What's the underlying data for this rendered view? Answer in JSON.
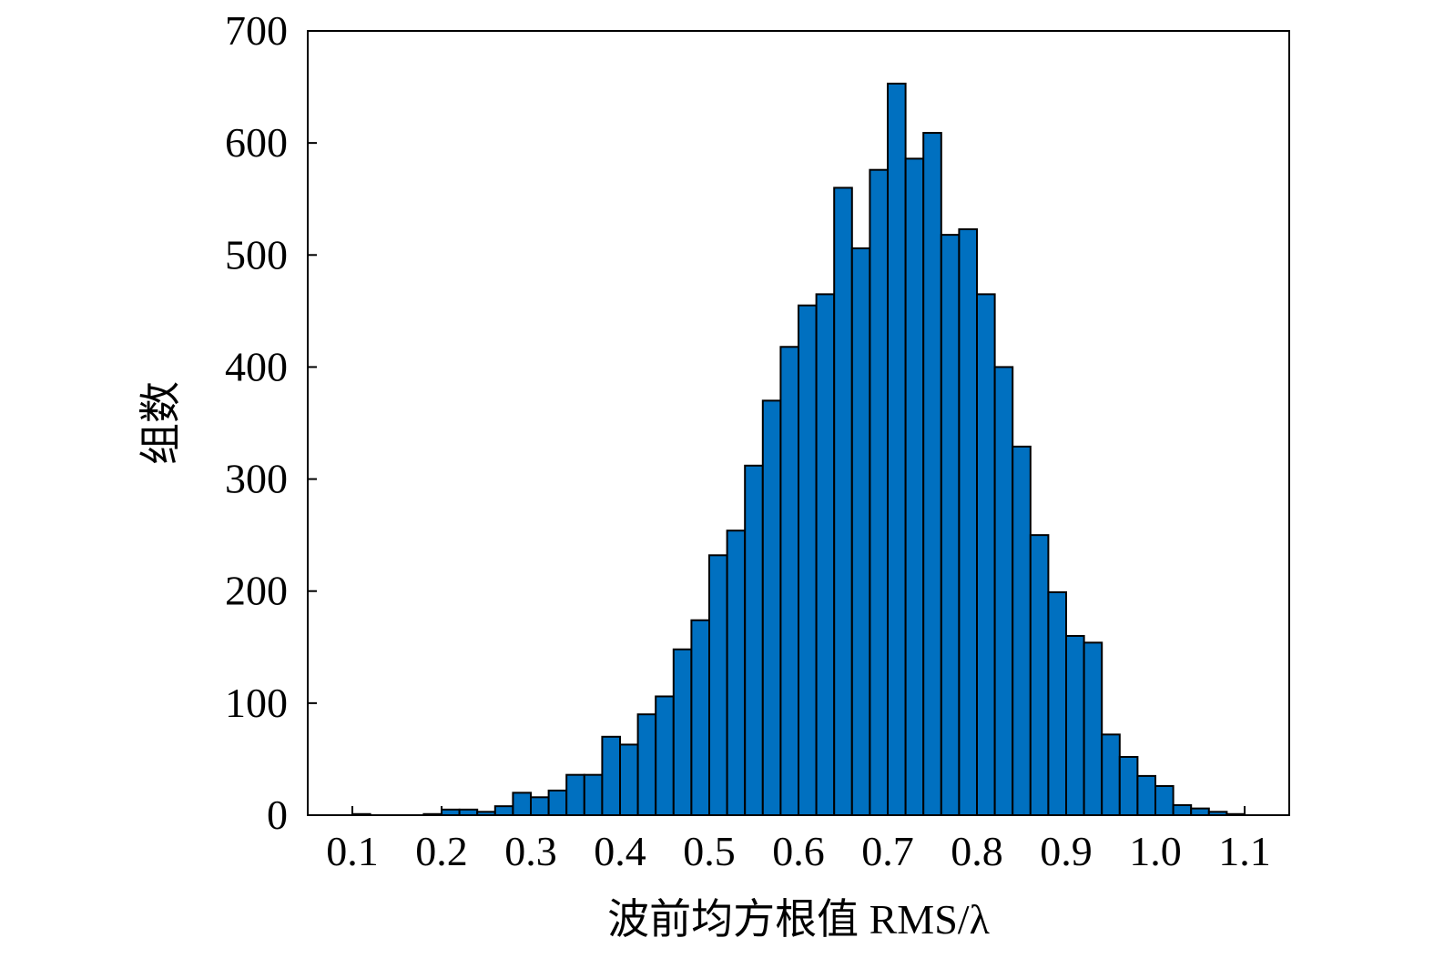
{
  "chart_data": {
    "type": "bar",
    "xlabel": "波前均方根值 RMS/λ",
    "ylabel": "组数",
    "xlim": [
      0.05,
      1.15
    ],
    "ylim": [
      0,
      700
    ],
    "xtick_labels": [
      "0.1",
      "0.2",
      "0.3",
      "0.4",
      "0.5",
      "0.6",
      "0.7",
      "0.8",
      "0.9",
      "1.0",
      "1.1"
    ],
    "ytick_labels": [
      "0",
      "100",
      "200",
      "300",
      "400",
      "500",
      "600",
      "700"
    ],
    "bin_edges": [
      0.1,
      0.12,
      0.14,
      0.16,
      0.18,
      0.2,
      0.22,
      0.24,
      0.26,
      0.28,
      0.3,
      0.32,
      0.34,
      0.36,
      0.38,
      0.4,
      0.42,
      0.44,
      0.46,
      0.48,
      0.5,
      0.52,
      0.54,
      0.56,
      0.58,
      0.6,
      0.62,
      0.64,
      0.66,
      0.68,
      0.7,
      0.72,
      0.74,
      0.76,
      0.78,
      0.8,
      0.82,
      0.84,
      0.86,
      0.88,
      0.9,
      0.92,
      0.94,
      0.96,
      0.98,
      1.0,
      1.02,
      1.04,
      1.06,
      1.08,
      1.1
    ],
    "values": [
      1,
      0,
      0,
      0,
      1,
      5,
      5,
      3,
      8,
      20,
      16,
      22,
      36,
      36,
      70,
      63,
      90,
      106,
      148,
      174,
      232,
      254,
      312,
      370,
      418,
      455,
      465,
      560,
      506,
      576,
      653,
      586,
      609,
      518,
      523,
      465,
      400,
      329,
      250,
      199,
      160,
      154,
      72,
      52,
      35,
      26,
      9,
      6,
      3,
      1
    ],
    "bar_color": "#0070C0",
    "edge_color": "#000000",
    "grid": false,
    "legend": "none"
  }
}
